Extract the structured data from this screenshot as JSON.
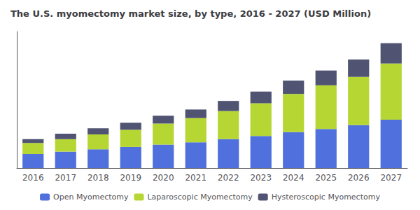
{
  "chart_data": {
    "type": "bar",
    "title": "The U.S. myomectomy market size, by type, 2016 - 2027 (USD Million)",
    "categories": [
      "2016",
      "2017",
      "2018",
      "2019",
      "2020",
      "2021",
      "2022",
      "2023",
      "2024",
      "2025",
      "2026",
      "2027"
    ],
    "series": [
      {
        "name": "Open Myomectomy",
        "values": [
          18,
          21,
          24,
          27,
          30,
          33,
          37,
          41,
          46,
          50,
          55,
          62
        ]
      },
      {
        "name": "Laparoscopic Myomectomy",
        "values": [
          14,
          16,
          19,
          22,
          27,
          31,
          36,
          42,
          49,
          56,
          62,
          72
        ]
      },
      {
        "name": "Hysteroscopic Myomectomy",
        "values": [
          5,
          7,
          8,
          9,
          10,
          11,
          13,
          15,
          17,
          19,
          22,
          26
        ]
      }
    ],
    "stacked": true,
    "ylim": [
      0,
      175
    ],
    "tick_labels": "x",
    "grid": false,
    "legend": "bottom"
  }
}
